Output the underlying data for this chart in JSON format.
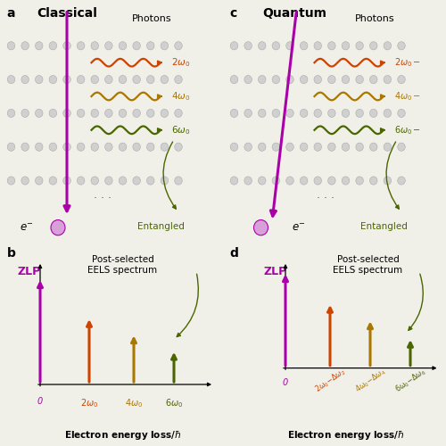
{
  "bg_color": "#f0efe8",
  "panel_a_title": "Classical",
  "panel_c_title": "Quantum",
  "panel_a_label": "a",
  "panel_b_label": "b",
  "panel_c_label": "c",
  "panel_d_label": "d",
  "photons_label": "Photons",
  "electron_label": "$e^{-}$",
  "entangled_label": "Entangled",
  "eels_title": "Post-selected\nEELS spectrum",
  "xlabel": "Electron energy loss/$\\hbar$",
  "zlp_label": "ZLP",
  "wave_colors": [
    "#cc4400",
    "#aa7700",
    "#4a6600"
  ],
  "wave_labels_classical": [
    "$2\\omega_0$",
    "$4\\omega_0$",
    "$6\\omega_0$"
  ],
  "wave_labels_quantum": [
    "$2\\omega_0-$",
    "$4\\omega_0-$",
    "$6\\omega_0-$"
  ],
  "bar_colors": [
    "#aa00aa",
    "#cc4400",
    "#aa7700",
    "#4a6600"
  ],
  "bar_tick_labels_classical": [
    "0",
    "$2\\omega_0$",
    "$4\\omega_0$",
    "$6\\omega_0$"
  ],
  "bar_tick_colors": [
    "#aa00aa",
    "#cc4400",
    "#aa7700",
    "#4a6600"
  ],
  "purple": "#aa00aa",
  "dark_green": "#4a6600",
  "orange_red": "#cc4400",
  "dark_yellow": "#aa7700",
  "atom_color": "#d0d0d0",
  "atom_edge_color": "#aaaaaa",
  "dots_color": "#555555"
}
